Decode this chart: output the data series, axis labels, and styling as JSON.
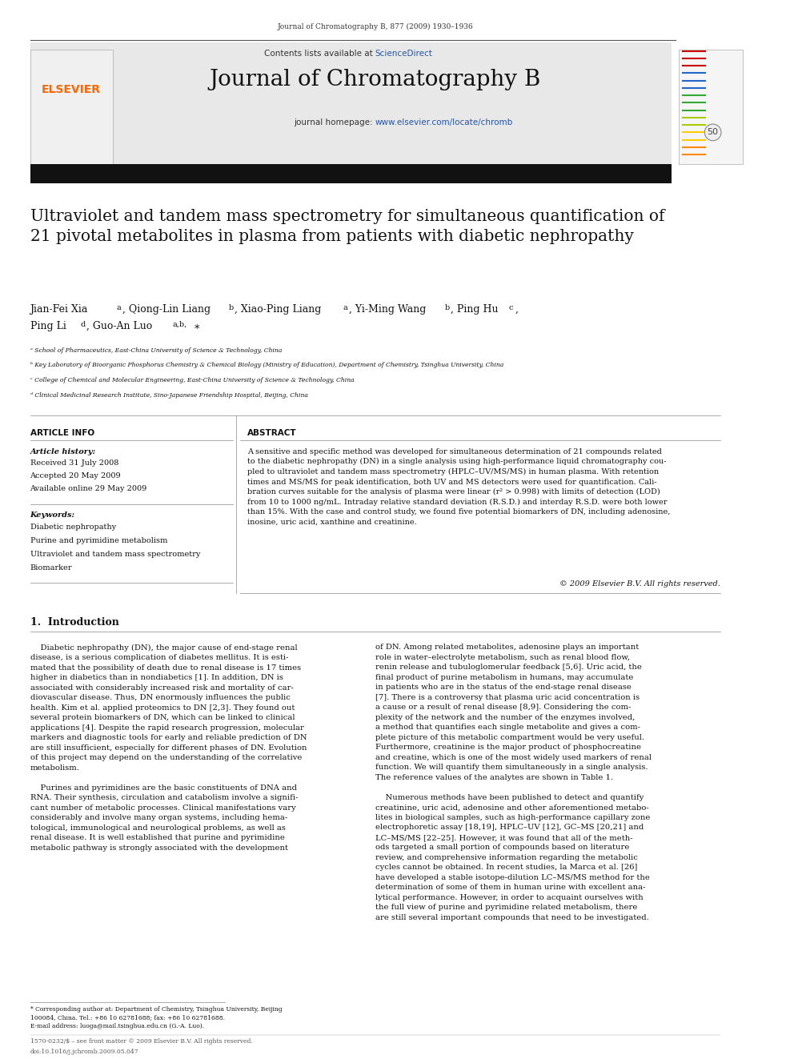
{
  "bg_color": "#ffffff",
  "page_width": 9.92,
  "page_height": 13.23,
  "top_journal_ref": "Journal of Chromatography B, 877 (2009) 1930–1936",
  "contents_text": "Contents lists available at ",
  "sciencedirect_text": "ScienceDirect",
  "journal_name": "Journal of Chromatography B",
  "homepage_text": "journal homepage: ",
  "homepage_url": "www.elsevier.com/locate/chromb",
  "header_bg": "#e8e8e8",
  "divider_color": "#000000",
  "elsevier_color": "#ff6600",
  "sciencedirect_color": "#2255aa",
  "homepage_url_color": "#2255aa",
  "title": "Ultraviolet and tandem mass spectrometry for simultaneous quantification of\n21 pivotal metabolites in plasma from patients with diabetic nephropathy",
  "affiliations": [
    "ᵃ School of Pharmaceutics, East-China University of Science & Technology, China",
    "ᵇ Key Laboratory of Bioorganic Phosphorus Chemistry & Chemical Biology (Ministry of Education), Department of Chemistry, Tsinghua University, China",
    "ᶜ College of Chemical and Molecular Engineering, East-China University of Science & Technology, China",
    "ᵈ Clinical Medicinal Research Institute, Sino-Japanese Friendship Hospital, Beijing, China"
  ],
  "article_info_title": "ARTICLE INFO",
  "article_history_label": "Article history:",
  "received": "Received 31 July 2008",
  "accepted": "Accepted 20 May 2009",
  "available": "Available online 29 May 2009",
  "keywords_label": "Keywords:",
  "keywords": [
    "Diabetic nephropathy",
    "Purine and pyrimidine metabolism",
    "Ultraviolet and tandem mass spectrometry",
    "Biomarker"
  ],
  "abstract_title": "ABSTRACT",
  "abstract_text": "A sensitive and specific method was developed for simultaneous determination of 21 compounds related\nto the diabetic nephropathy (DN) in a single analysis using high-performance liquid chromatography cou-\npled to ultraviolet and tandem mass spectrometry (HPLC–UV/MS/MS) in human plasma. With retention\ntimes and MS/MS for peak identification, both UV and MS detectors were used for quantification. Cali-\nbration curves suitable for the analysis of plasma were linear (r² > 0.998) with limits of detection (LOD)\nfrom 10 to 1000 ng/mL. Intraday relative standard deviation (R.S.D.) and interday R.S.D. were both lower\nthan 15%. With the case and control study, we found five potential biomarkers of DN, including adenosine,\ninosine, uric acid, xanthine and creatinine.",
  "copyright_text": "© 2009 Elsevier B.V. All rights reserved.",
  "intro_title": "1.  Introduction",
  "intro_col1": "    Diabetic nephropathy (DN), the major cause of end-stage renal\ndisease, is a serious complication of diabetes mellitus. It is esti-\nmated that the possibility of death due to renal disease is 17 times\nhigher in diabetics than in nondiabetics [1]. In addition, DN is\nassociated with considerably increased risk and mortality of car-\ndiovascular disease. Thus, DN enormously influences the public\nhealth. Kim et al. applied proteomics to DN [2,3]. They found out\nseveral protein biomarkers of DN, which can be linked to clinical\napplications [4]. Despite the rapid research progression, molecular\nmarkers and diagnostic tools for early and reliable prediction of DN\nare still insufficient, especially for different phases of DN. Evolution\nof this project may depend on the understanding of the correlative\nmetabolism.\n\n    Purines and pyrimidines are the basic constituents of DNA and\nRNA. Their synthesis, circulation and catabolism involve a signifi-\ncant number of metabolic processes. Clinical manifestations vary\nconsiderably and involve many organ systems, including hema-\ntological, immunological and neurological problems, as well as\nrenal disease. It is well established that purine and pyrimidine\nmetabolic pathway is strongly associated with the development",
  "intro_col2": "of DN. Among related metabolites, adenosine plays an important\nrole in water–electrolyte metabolism, such as renal blood flow,\nrenin release and tubuloglomerular feedback [5,6]. Uric acid, the\nfinal product of purine metabolism in humans, may accumulate\nin patients who are in the status of the end-stage renal disease\n[7]. There is a controversy that plasma uric acid concentration is\na cause or a result of renal disease [8,9]. Considering the com-\nplexity of the network and the number of the enzymes involved,\na method that quantifies each single metabolite and gives a com-\nplete picture of this metabolic compartment would be very useful.\nFurthermore, creatinine is the major product of phosphocreatine\nand creatine, which is one of the most widely used markers of renal\nfunction. We will quantify them simultaneously in a single analysis.\nThe reference values of the analytes are shown in Table 1.\n\n    Numerous methods have been published to detect and quantify\ncreatinine, uric acid, adenosine and other aforementioned metabo-\nlites in biological samples, such as high-performance capillary zone\nelectrophoretic assay [18,19], HPLC–UV [12], GC–MS [20,21] and\nLC–MS/MS [22–25]. However, it was found that all of the meth-\nods targeted a small portion of compounds based on literature\nreview, and comprehensive information regarding the metabolic\ncycles cannot be obtained. In recent studies, la Marca et al. [26]\nhave developed a stable isotope-dilution LC–MS/MS method for the\ndetermination of some of them in human urine with excellent ana-\nlytical performance. However, in order to acquaint ourselves with\nthe full view of purine and pyrimidine related metabolism, there\nare still several important compounds that need to be investigated.",
  "footnote_corresponding": "* Corresponding author at: Department of Chemistry, Tsinghua University, Beijing\n100084, China. Tel.: +86 10 62781688; fax: +86 10 62781688.",
  "footnote_email": "E-mail address: luoga@mail.tsinghua.edu.cn (G.-A. Luo).",
  "footer_issn": "1570-0232/$ – see front matter © 2009 Elsevier B.V. All rights reserved.",
  "footer_doi": "doi:10.1016/j.jchromb.2009.05.047",
  "ref_color": "#2255aa"
}
